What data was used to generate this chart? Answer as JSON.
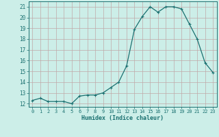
{
  "x": [
    0,
    1,
    2,
    3,
    4,
    5,
    6,
    7,
    8,
    9,
    10,
    11,
    12,
    13,
    14,
    15,
    16,
    17,
    18,
    19,
    20,
    21,
    22,
    23
  ],
  "y": [
    12.3,
    12.5,
    12.2,
    12.2,
    12.2,
    12.0,
    12.7,
    12.8,
    12.8,
    13.0,
    13.5,
    14.0,
    15.5,
    18.9,
    20.1,
    21.0,
    20.5,
    21.0,
    21.0,
    20.8,
    19.4,
    18.0,
    15.8,
    14.9
  ],
  "line_color": "#1a7070",
  "bg_color": "#cceee8",
  "grid_color": "#c0a8a8",
  "xlabel": "Humidex (Indice chaleur)",
  "xlim": [
    -0.5,
    23.5
  ],
  "ylim": [
    11.7,
    21.5
  ],
  "xticks": [
    0,
    1,
    2,
    3,
    4,
    5,
    6,
    7,
    8,
    9,
    10,
    11,
    12,
    13,
    14,
    15,
    16,
    17,
    18,
    19,
    20,
    21,
    22,
    23
  ],
  "yticks": [
    12,
    13,
    14,
    15,
    16,
    17,
    18,
    19,
    20,
    21
  ]
}
